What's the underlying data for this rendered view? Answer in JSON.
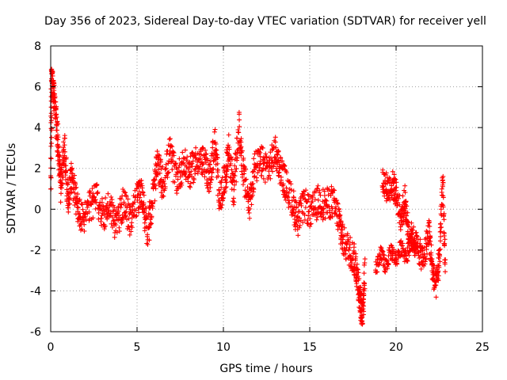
{
  "chart_data": {
    "type": "scatter",
    "title": "Day 356 of 2023, Sidereal Day-to-day VTEC variation (SDTVAR) for receiver yell",
    "xlabel": "GPS time / hours",
    "ylabel": "SDTVAR / TECUs",
    "xlim": [
      0,
      25
    ],
    "ylim": [
      -6,
      8
    ],
    "xticks": [
      "0",
      "5",
      "10",
      "15",
      "20",
      "25"
    ],
    "yticks": [
      "-6",
      "-4",
      "-2",
      "0",
      "2",
      "4",
      "6",
      "8"
    ],
    "grid": true,
    "marker": "+",
    "color": "#ff0000",
    "series": [
      {
        "name": "SDTVAR",
        "note": "dense red '+' markers; trace approximated by anchor points (hours, TECU)",
        "anchors": [
          [
            0.0,
            1.0
          ],
          [
            0.05,
            6.2
          ],
          [
            0.15,
            5.8
          ],
          [
            0.3,
            4.5
          ],
          [
            0.45,
            3.0
          ],
          [
            0.6,
            1.0
          ],
          [
            0.8,
            3.2
          ],
          [
            1.0,
            0.5
          ],
          [
            1.2,
            1.8
          ],
          [
            1.5,
            0.2
          ],
          [
            1.8,
            -0.5
          ],
          [
            2.2,
            0.0
          ],
          [
            2.6,
            0.6
          ],
          [
            3.0,
            -0.3
          ],
          [
            3.4,
            0.2
          ],
          [
            3.8,
            -0.8
          ],
          [
            4.2,
            0.3
          ],
          [
            4.6,
            -0.5
          ],
          [
            5.0,
            0.5
          ],
          [
            5.3,
            0.8
          ],
          [
            5.6,
            -1.2
          ],
          [
            5.9,
            0.5
          ],
          [
            6.2,
            2.2
          ],
          [
            6.5,
            1.2
          ],
          [
            6.9,
            2.8
          ],
          [
            7.3,
            1.5
          ],
          [
            7.7,
            2.2
          ],
          [
            8.1,
            1.8
          ],
          [
            8.5,
            2.5
          ],
          [
            8.9,
            2.2
          ],
          [
            9.2,
            1.5
          ],
          [
            9.5,
            3.2
          ],
          [
            9.8,
            0.5
          ],
          [
            10.1,
            1.5
          ],
          [
            10.3,
            3.0
          ],
          [
            10.6,
            0.8
          ],
          [
            10.9,
            4.0
          ],
          [
            11.2,
            1.5
          ],
          [
            11.5,
            0.2
          ],
          [
            11.8,
            2.0
          ],
          [
            12.2,
            2.3
          ],
          [
            12.6,
            2.0
          ],
          [
            13.0,
            2.8
          ],
          [
            13.3,
            2.0
          ],
          [
            13.6,
            1.2
          ],
          [
            14.0,
            0.3
          ],
          [
            14.3,
            -0.5
          ],
          [
            14.7,
            0.2
          ],
          [
            15.1,
            -0.2
          ],
          [
            15.5,
            0.4
          ],
          [
            15.9,
            0.2
          ],
          [
            16.3,
            0.4
          ],
          [
            16.7,
            -0.5
          ],
          [
            16.9,
            -1.5
          ],
          [
            17.3,
            -2.0
          ],
          [
            17.6,
            -2.5
          ],
          [
            17.8,
            -3.5
          ],
          [
            17.95,
            -4.8
          ],
          [
            18.05,
            -5.0
          ],
          [
            18.2,
            -3.0
          ]
        ],
        "anchors_b": [
          [
            19.2,
            1.5
          ],
          [
            19.5,
            1.0
          ],
          [
            19.8,
            1.2
          ],
          [
            20.0,
            0.8
          ],
          [
            20.3,
            -0.5
          ],
          [
            20.5,
            0.5
          ],
          [
            20.7,
            -1.0
          ],
          [
            21.0,
            -1.5
          ],
          [
            21.3,
            -2.0
          ],
          [
            21.6,
            -2.5
          ],
          [
            21.9,
            -1.0
          ],
          [
            22.1,
            -3.0
          ],
          [
            22.3,
            -3.8
          ],
          [
            22.5,
            -2.5
          ],
          [
            22.7,
            1.5
          ],
          [
            22.85,
            -3.5
          ]
        ],
        "anchors_c": [
          [
            18.8,
            -3.0
          ],
          [
            19.1,
            -2.2
          ],
          [
            19.4,
            -2.8
          ],
          [
            19.7,
            -2.0
          ],
          [
            20.0,
            -2.5
          ],
          [
            20.3,
            -1.8
          ],
          [
            20.6,
            -2.3
          ],
          [
            20.9,
            -1.5
          ],
          [
            21.2,
            -2.0
          ]
        ]
      }
    ]
  }
}
